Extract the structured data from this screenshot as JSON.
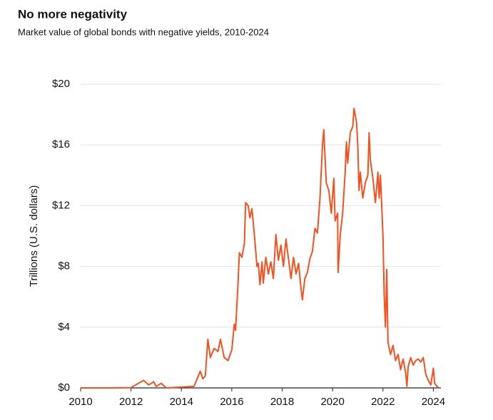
{
  "chart_data": {
    "type": "line",
    "title": "No more negativity",
    "subtitle": "Market value of global bonds with negative yields, 2010-2024",
    "y_label": "Trillions (U.S. dollars)",
    "color": "#f4511e",
    "grid": true,
    "xlim": [
      2010,
      2024.3
    ],
    "xticks": [
      2010,
      2012,
      2014,
      2016,
      2018,
      2020,
      2022,
      2024
    ],
    "ylim": [
      0,
      20
    ],
    "yticks": [
      {
        "value": 0,
        "label": "$0"
      },
      {
        "value": 4,
        "label": "$4"
      },
      {
        "value": 8,
        "label": "$8"
      },
      {
        "value": 12,
        "label": "$12"
      },
      {
        "value": 16,
        "label": "$16"
      },
      {
        "value": 20,
        "label": "$20"
      }
    ],
    "x": [
      2010,
      2011,
      2012,
      2012.5,
      2012.7,
      2012.9,
      2013.0,
      2013.2,
      2013.4,
      2014.5,
      2014.75,
      2014.85,
      2014.95,
      2015.05,
      2015.15,
      2015.3,
      2015.45,
      2015.55,
      2015.7,
      2015.85,
      2016.0,
      2016.1,
      2016.15,
      2016.25,
      2016.3,
      2016.4,
      2016.5,
      2016.55,
      2016.65,
      2016.72,
      2016.8,
      2016.9,
      2017.0,
      2017.05,
      2017.12,
      2017.2,
      2017.25,
      2017.35,
      2017.45,
      2017.55,
      2017.65,
      2017.75,
      2017.85,
      2017.95,
      2018.05,
      2018.15,
      2018.25,
      2018.35,
      2018.45,
      2018.55,
      2018.65,
      2018.75,
      2018.8,
      2018.9,
      2019.0,
      2019.1,
      2019.2,
      2019.3,
      2019.4,
      2019.5,
      2019.6,
      2019.65,
      2019.75,
      2019.85,
      2019.95,
      2020.05,
      2020.1,
      2020.2,
      2020.22,
      2020.3,
      2020.4,
      2020.5,
      2020.55,
      2020.6,
      2020.7,
      2020.8,
      2020.85,
      2020.95,
      2021.0,
      2021.05,
      2021.1,
      2021.2,
      2021.3,
      2021.4,
      2021.45,
      2021.5,
      2021.6,
      2021.7,
      2021.8,
      2021.85,
      2021.9,
      2022.0,
      2022.05,
      2022.1,
      2022.15,
      2022.2,
      2022.3,
      2022.4,
      2022.5,
      2022.6,
      2022.7,
      2022.8,
      2022.9,
      2022.95,
      2023.0,
      2023.1,
      2023.2,
      2023.3,
      2023.4,
      2023.5,
      2023.6,
      2023.7,
      2023.8,
      2023.9,
      2024.0,
      2024.05,
      2024.2
    ],
    "values": [
      0,
      0,
      0.02,
      0.5,
      0.2,
      0.4,
      0.1,
      0.3,
      0,
      0.1,
      1.1,
      0.6,
      0.8,
      3.2,
      2.0,
      2.6,
      2.4,
      3.2,
      2.0,
      1.8,
      2.5,
      4.2,
      3.8,
      7.0,
      8.9,
      8.6,
      9.5,
      12.2,
      12.0,
      11.2,
      11.8,
      10.0,
      8.0,
      8.2,
      6.8,
      8.3,
      6.9,
      8.6,
      7.5,
      8.3,
      7.2,
      10.1,
      8.4,
      9.4,
      8.0,
      9.8,
      8.5,
      7.2,
      8.6,
      7.5,
      8.2,
      6.5,
      5.8,
      7.2,
      7.6,
      8.5,
      9.0,
      10.5,
      10.2,
      12.5,
      16.0,
      17.0,
      13.5,
      13.0,
      11.5,
      13.8,
      11.0,
      11.5,
      7.6,
      10.0,
      11.5,
      14.2,
      16.2,
      14.8,
      16.8,
      17.2,
      18.4,
      17.5,
      16.0,
      13.0,
      14.2,
      12.5,
      13.5,
      14.0,
      16.8,
      15.0,
      13.8,
      12.2,
      14.2,
      12.5,
      14.0,
      10.0,
      6.0,
      4.0,
      7.8,
      3.0,
      2.2,
      2.8,
      1.8,
      2.2,
      1.2,
      1.9,
      1.0,
      0.1,
      1.4,
      2.0,
      1.5,
      1.8,
      1.9,
      1.7,
      2.0,
      0.9,
      0.5,
      0.2,
      1.3,
      0.3,
      0
    ]
  }
}
